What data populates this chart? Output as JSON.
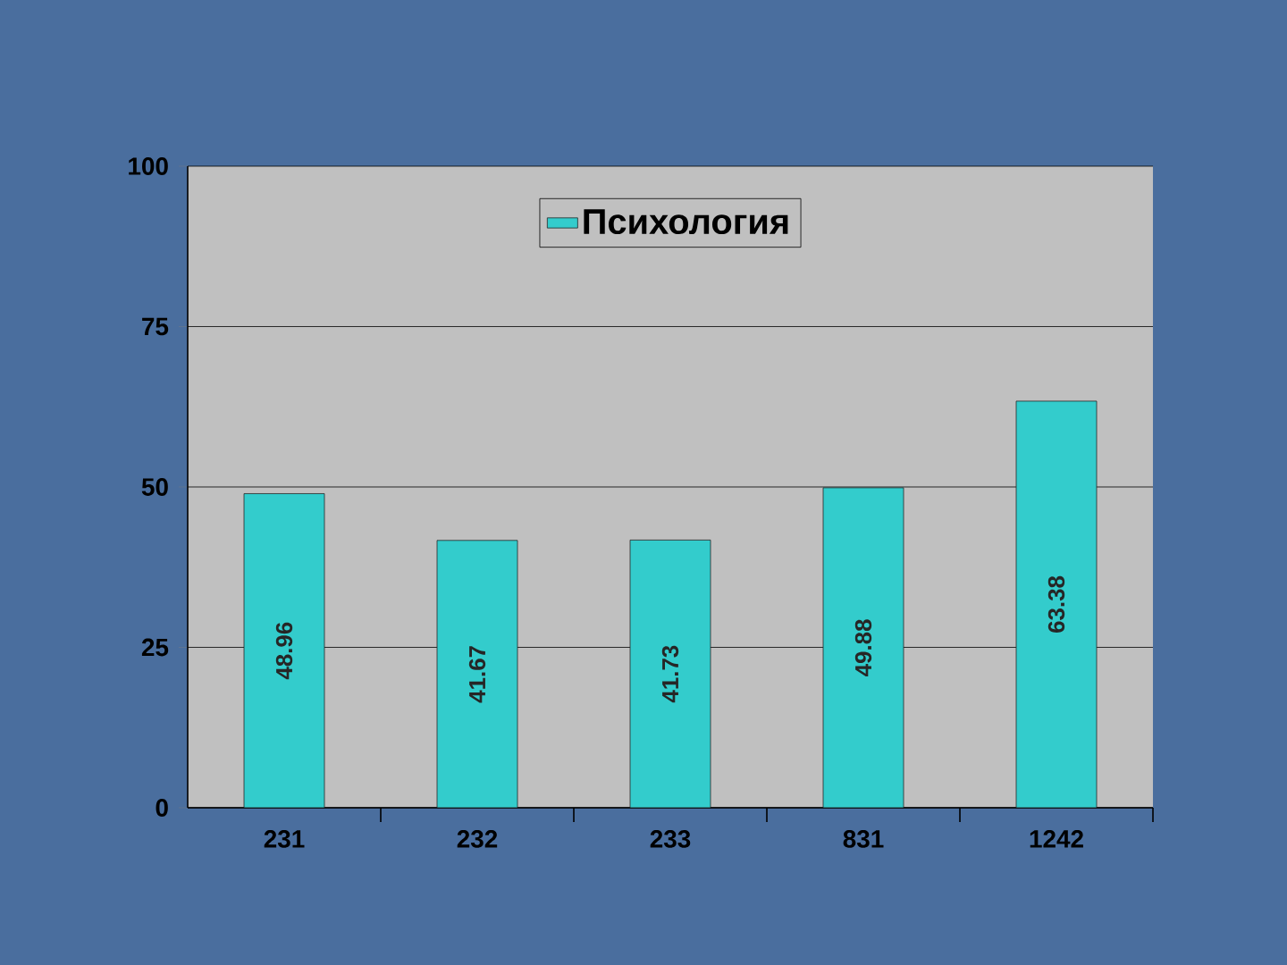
{
  "chart_data": {
    "type": "bar",
    "categories": [
      "231",
      "232",
      "233",
      "831",
      "1242"
    ],
    "series": [
      {
        "name": "Психология",
        "color": "#33cccc",
        "values": [
          48.96,
          41.67,
          41.73,
          49.88,
          63.38
        ]
      }
    ],
    "ylim": [
      0,
      100
    ],
    "yticks": [
      0,
      25,
      50,
      75,
      100
    ],
    "grid": "y",
    "legend": "top",
    "data_labels": true
  }
}
